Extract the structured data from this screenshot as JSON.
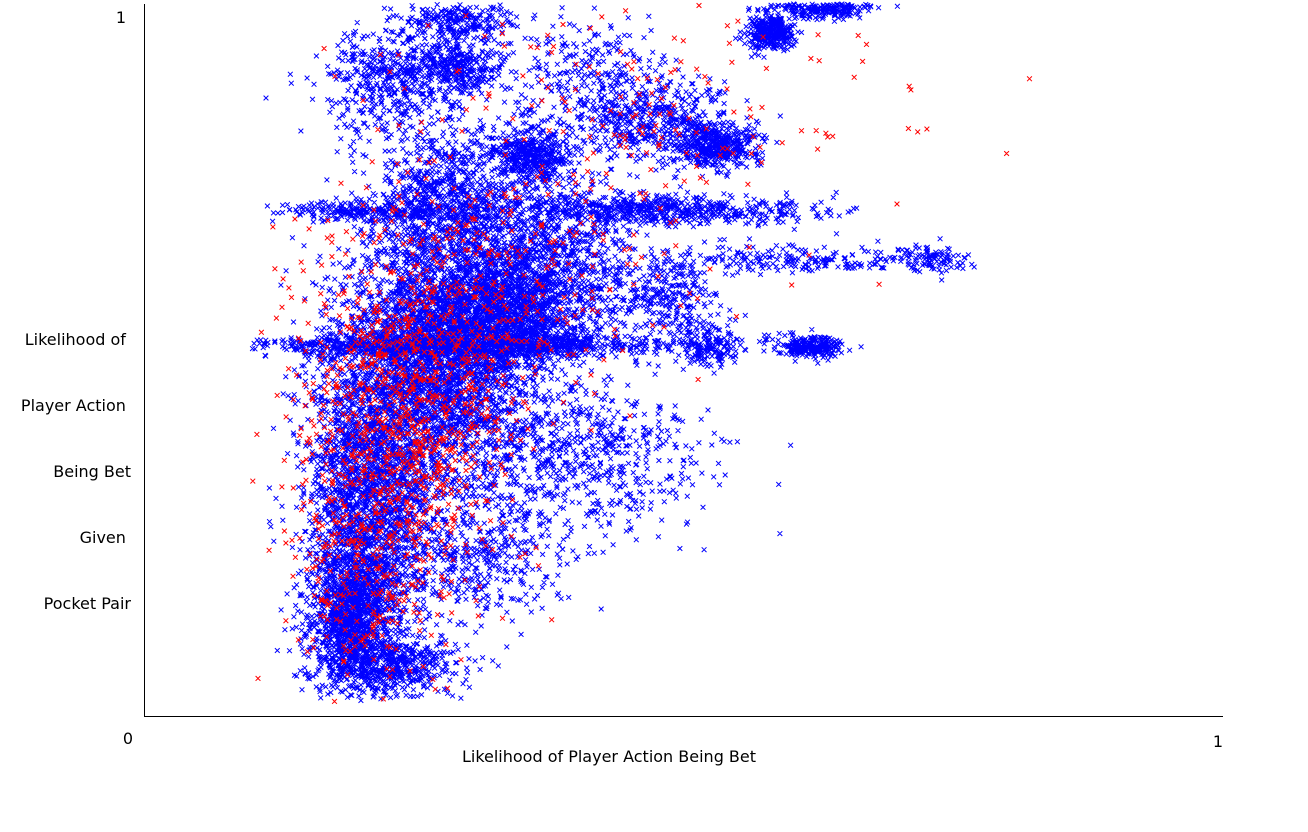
{
  "chart_data": {
    "type": "scatter",
    "title": "",
    "xlabel": "Likelihood of Player Action Being Bet",
    "ylabel_lines": [
      "Likelihood of ",
      "Player Action ",
      "Being Bet",
      "Given ",
      "Pocket Pair"
    ],
    "xlim": [
      0,
      1
    ],
    "ylim": [
      0,
      1
    ],
    "x_tick_labels": [
      "0",
      "1"
    ],
    "y_tick_labels": [
      "1"
    ],
    "grid": false,
    "legend": "none",
    "marker": "x",
    "series": [
      {
        "color": "#0000ff",
        "points_approximate_count": 20000,
        "clusters": [
          {
            "x": 0.27,
            "y": 0.5,
            "sx": 0.045,
            "sy": 0.09,
            "n": 3200
          },
          {
            "x": 0.21,
            "y": 0.31,
            "sx": 0.03,
            "sy": 0.1,
            "n": 2100
          },
          {
            "x": 0.19,
            "y": 0.14,
            "sx": 0.02,
            "sy": 0.05,
            "n": 1200
          },
          {
            "x": 0.23,
            "y": 0.07,
            "sx": 0.03,
            "sy": 0.02,
            "n": 500
          },
          {
            "x": 0.33,
            "y": 0.56,
            "sx": 0.04,
            "sy": 0.04,
            "n": 1600
          },
          {
            "x": 0.28,
            "y": 0.72,
            "sx": 0.035,
            "sy": 0.05,
            "n": 900
          },
          {
            "x": 0.37,
            "y": 0.65,
            "sx": 0.04,
            "sy": 0.06,
            "n": 1000
          },
          {
            "x": 0.36,
            "y": 0.79,
            "sx": 0.02,
            "sy": 0.02,
            "n": 450
          },
          {
            "x": 0.29,
            "y": 0.91,
            "sx": 0.02,
            "sy": 0.02,
            "n": 350
          },
          {
            "x": 0.23,
            "y": 0.89,
            "sx": 0.03,
            "sy": 0.04,
            "n": 500
          },
          {
            "x": 0.29,
            "y": 0.98,
            "sx": 0.025,
            "sy": 0.015,
            "n": 250
          },
          {
            "x": 0.47,
            "y": 0.84,
            "sx": 0.04,
            "sy": 0.03,
            "n": 500
          },
          {
            "x": 0.53,
            "y": 0.8,
            "sx": 0.02,
            "sy": 0.015,
            "n": 450
          },
          {
            "x": 0.58,
            "y": 0.96,
            "sx": 0.012,
            "sy": 0.012,
            "n": 350
          },
          {
            "x": 0.63,
            "y": 0.995,
            "sx": 0.025,
            "sy": 0.008,
            "n": 250
          },
          {
            "x": 0.62,
            "y": 0.52,
            "sx": 0.015,
            "sy": 0.008,
            "n": 250
          },
          {
            "x": 0.52,
            "y": 0.52,
            "sx": 0.015,
            "sy": 0.015,
            "n": 180
          },
          {
            "x": 0.48,
            "y": 0.59,
            "sx": 0.03,
            "sy": 0.03,
            "n": 300
          },
          {
            "x": 0.52,
            "y": 0.71,
            "sx": 0.06,
            "sy": 0.01,
            "n": 350
          },
          {
            "x": 0.44,
            "y": 0.71,
            "sx": 0.05,
            "sy": 0.01,
            "n": 250
          },
          {
            "x": 0.6,
            "y": 0.64,
            "sx": 0.06,
            "sy": 0.01,
            "n": 200
          },
          {
            "x": 0.34,
            "y": 0.52,
            "sx": 0.09,
            "sy": 0.008,
            "n": 650
          },
          {
            "x": 0.2,
            "y": 0.52,
            "sx": 0.06,
            "sy": 0.008,
            "n": 300
          },
          {
            "x": 0.21,
            "y": 0.71,
            "sx": 0.04,
            "sy": 0.008,
            "n": 250
          },
          {
            "x": 0.4,
            "y": 0.37,
            "sx": 0.06,
            "sy": 0.06,
            "n": 700
          },
          {
            "x": 0.31,
            "y": 0.22,
            "sx": 0.04,
            "sy": 0.04,
            "n": 400
          },
          {
            "x": 0.73,
            "y": 0.64,
            "sx": 0.02,
            "sy": 0.01,
            "n": 100
          },
          {
            "x": 0.41,
            "y": 0.9,
            "sx": 0.04,
            "sy": 0.04,
            "n": 250
          }
        ]
      },
      {
        "color": "#ff0000",
        "points_approximate_count": 1600,
        "clusters": [
          {
            "x": 0.24,
            "y": 0.44,
            "sx": 0.05,
            "sy": 0.12,
            "n": 900
          },
          {
            "x": 0.21,
            "y": 0.2,
            "sx": 0.04,
            "sy": 0.08,
            "n": 250
          },
          {
            "x": 0.33,
            "y": 0.6,
            "sx": 0.08,
            "sy": 0.1,
            "n": 250
          },
          {
            "x": 0.45,
            "y": 0.83,
            "sx": 0.12,
            "sy": 0.09,
            "n": 200
          }
        ]
      }
    ]
  },
  "colors": {
    "background": "#ffffff",
    "axis": "#000000",
    "series_blue": "#0000ff",
    "series_red": "#ff0000"
  }
}
